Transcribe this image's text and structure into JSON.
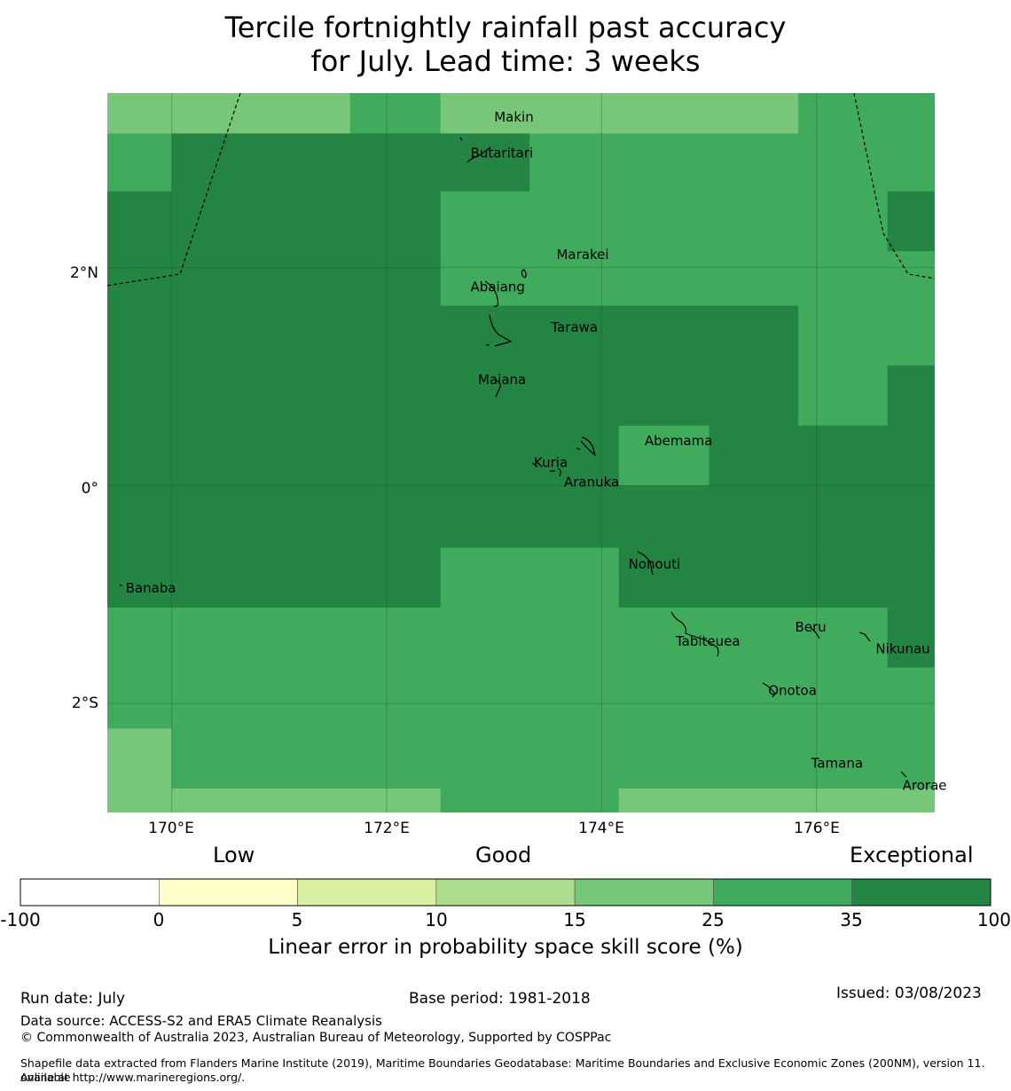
{
  "title_line1": "Tercile fortnightly rainfall past accuracy",
  "title_line2": "for July. Lead time: 3 weeks",
  "map": {
    "lon_range": [
      169.4,
      177.1
    ],
    "lat_range": [
      -3.0,
      3.6
    ],
    "y_ticks": [
      {
        "lat": 2,
        "label": "2°N"
      },
      {
        "lat": 0,
        "label": "0°"
      },
      {
        "lat": -2,
        "label": "2°S"
      }
    ],
    "x_ticks": [
      {
        "lon": 170,
        "label": "170°E"
      },
      {
        "lon": 172,
        "label": "172°E"
      },
      {
        "lon": 174,
        "label": "174°E"
      },
      {
        "lon": 176,
        "label": "176°E"
      }
    ],
    "skill_category_colors": {
      "15-25": "#78c679",
      "25-35": "#41ab5d",
      "35-100": "#238443"
    },
    "skill_cells_lon_lat_bounds": [
      {
        "lon": [
          169.4,
          177.1
        ],
        "lat": [
          -3.0,
          3.6
        ],
        "category": "25-35"
      },
      {
        "lon": [
          169.4,
          171.66
        ],
        "lat": [
          3.23,
          3.6
        ],
        "category": "15-25"
      },
      {
        "lon": [
          172.5,
          175.83
        ],
        "lat": [
          3.23,
          3.6
        ],
        "category": "15-25"
      },
      {
        "lon": [
          170.0,
          173.33
        ],
        "lat": [
          2.7,
          3.23
        ],
        "category": "35-100"
      },
      {
        "lon": [
          169.4,
          172.5
        ],
        "lat": [
          -1.12,
          2.7
        ],
        "category": "35-100"
      },
      {
        "lon": [
          172.5,
          175.83
        ],
        "lat": [
          -0.57,
          1.65
        ],
        "category": "35-100"
      },
      {
        "lon": [
          175.83,
          177.1
        ],
        "lat": [
          -0.57,
          0.55
        ],
        "category": "35-100"
      },
      {
        "lon": [
          176.66,
          177.1
        ],
        "lat": [
          0.55,
          1.1
        ],
        "category": "35-100"
      },
      {
        "lon": [
          176.66,
          177.1
        ],
        "lat": [
          2.15,
          2.7
        ],
        "category": "35-100"
      },
      {
        "lon": [
          174.16,
          177.1
        ],
        "lat": [
          -1.12,
          -0.57
        ],
        "category": "35-100"
      },
      {
        "lon": [
          176.66,
          177.1
        ],
        "lat": [
          -1.67,
          -1.12
        ],
        "category": "35-100"
      },
      {
        "lon": [
          174.16,
          175.0
        ],
        "lat": [
          0.0,
          0.55
        ],
        "category": "25-35"
      },
      {
        "lon": [
          169.4,
          170.0
        ],
        "lat": [
          -3.0,
          -2.23
        ],
        "category": "15-25"
      },
      {
        "lon": [
          170.0,
          172.5
        ],
        "lat": [
          -3.0,
          -2.78
        ],
        "category": "15-25"
      },
      {
        "lon": [
          174.16,
          177.1
        ],
        "lat": [
          -3.0,
          -2.78
        ],
        "category": "15-25"
      }
    ],
    "places": [
      {
        "name": "Makin",
        "lon": 173.0,
        "lat": 3.38
      },
      {
        "name": "Butaritari",
        "lon": 172.78,
        "lat": 3.05
      },
      {
        "name": "Marakei",
        "lon": 173.58,
        "lat": 2.12
      },
      {
        "name": "Abaiang",
        "lon": 172.78,
        "lat": 1.82
      },
      {
        "name": "Tarawa",
        "lon": 173.53,
        "lat": 1.45
      },
      {
        "name": "Maiana",
        "lon": 172.85,
        "lat": 0.97
      },
      {
        "name": "Abemama",
        "lon": 174.4,
        "lat": 0.41
      },
      {
        "name": "Kuria",
        "lon": 173.37,
        "lat": 0.21
      },
      {
        "name": "Aranuka",
        "lon": 173.65,
        "lat": 0.03
      },
      {
        "name": "Nonouti",
        "lon": 174.25,
        "lat": -0.72
      },
      {
        "name": "Banaba",
        "lon": 169.57,
        "lat": -0.94
      },
      {
        "name": "Beru",
        "lon": 175.8,
        "lat": -1.3
      },
      {
        "name": "Tabiteuea",
        "lon": 174.69,
        "lat": -1.43
      },
      {
        "name": "Nikunau",
        "lon": 176.55,
        "lat": -1.5
      },
      {
        "name": "Onotoa",
        "lon": 175.55,
        "lat": -1.88
      },
      {
        "name": "Tamana",
        "lon": 175.95,
        "lat": -2.55
      },
      {
        "name": "Arorae",
        "lon": 176.8,
        "lat": -2.75
      }
    ]
  },
  "legend": {
    "categories": [
      "Low",
      "Good",
      "Exceptional"
    ],
    "colors": [
      "#ffffff",
      "#ffffcc",
      "#d9f0a3",
      "#addd8e",
      "#78c679",
      "#41ab5d",
      "#238443"
    ],
    "ticks": [
      "-100",
      "0",
      "5",
      "10",
      "15",
      "25",
      "35",
      "100"
    ],
    "label": "Linear error in probability space skill score (%)"
  },
  "footer": {
    "run_date": "Run date: July",
    "base_period": "Base period: 1981-2018",
    "issued": "Issued: 03/08/2023",
    "data_source": "Data source: ACCESS-S2 and ERA5 Climate Reanalysis",
    "copyright": "© Commonwealth of Australia 2023, Australian Bureau of Meteorology, Supported by COSPPac",
    "shapefile_line1": "Shapefile data extracted from Flanders Marine Institute (2019), Maritime Boundaries Geodatabase: Maritime Boundaries and Exclusive Economic Zones (200NM), version 11. Available",
    "shapefile_line2": "online at http://www.marineregions.org/."
  }
}
